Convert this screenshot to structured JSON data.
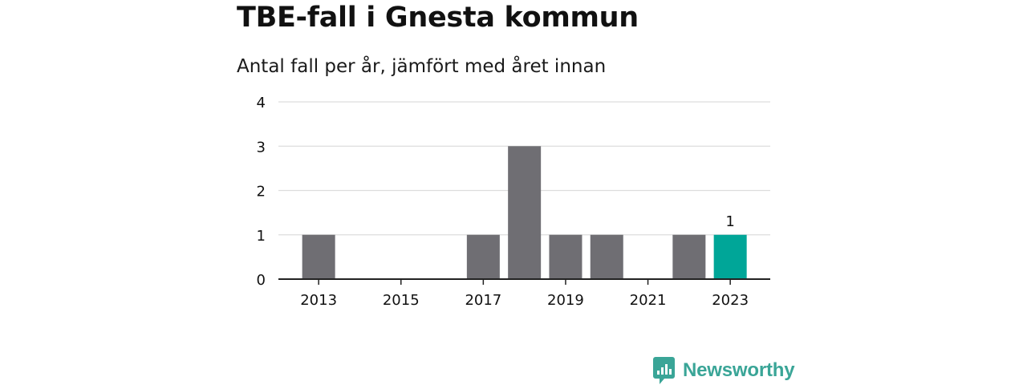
{
  "title": "TBE-fall i Gnesta kommun",
  "subtitle": "Antal fall per år, jämfört med året innan",
  "brand": {
    "name": "Newsworthy",
    "color": "#3aa597"
  },
  "chart_data": {
    "type": "bar",
    "categories": [
      "2013",
      "2014",
      "2015",
      "2016",
      "2017",
      "2018",
      "2019",
      "2020",
      "2021",
      "2022",
      "2023"
    ],
    "x_tick_labels": [
      "2013",
      "2015",
      "2017",
      "2019",
      "2021",
      "2023"
    ],
    "values": [
      1,
      0,
      0,
      0,
      1,
      3,
      1,
      1,
      0,
      1,
      1
    ],
    "ylim": [
      0,
      4
    ],
    "y_ticks": [
      0,
      1,
      2,
      3,
      4
    ],
    "grid": true,
    "highlight": {
      "category": "2023",
      "value_label": "1"
    },
    "colors": {
      "bar": "#6f6e73",
      "highlight": "#00a698",
      "grid": "#dddddd",
      "axis": "#222222"
    }
  }
}
